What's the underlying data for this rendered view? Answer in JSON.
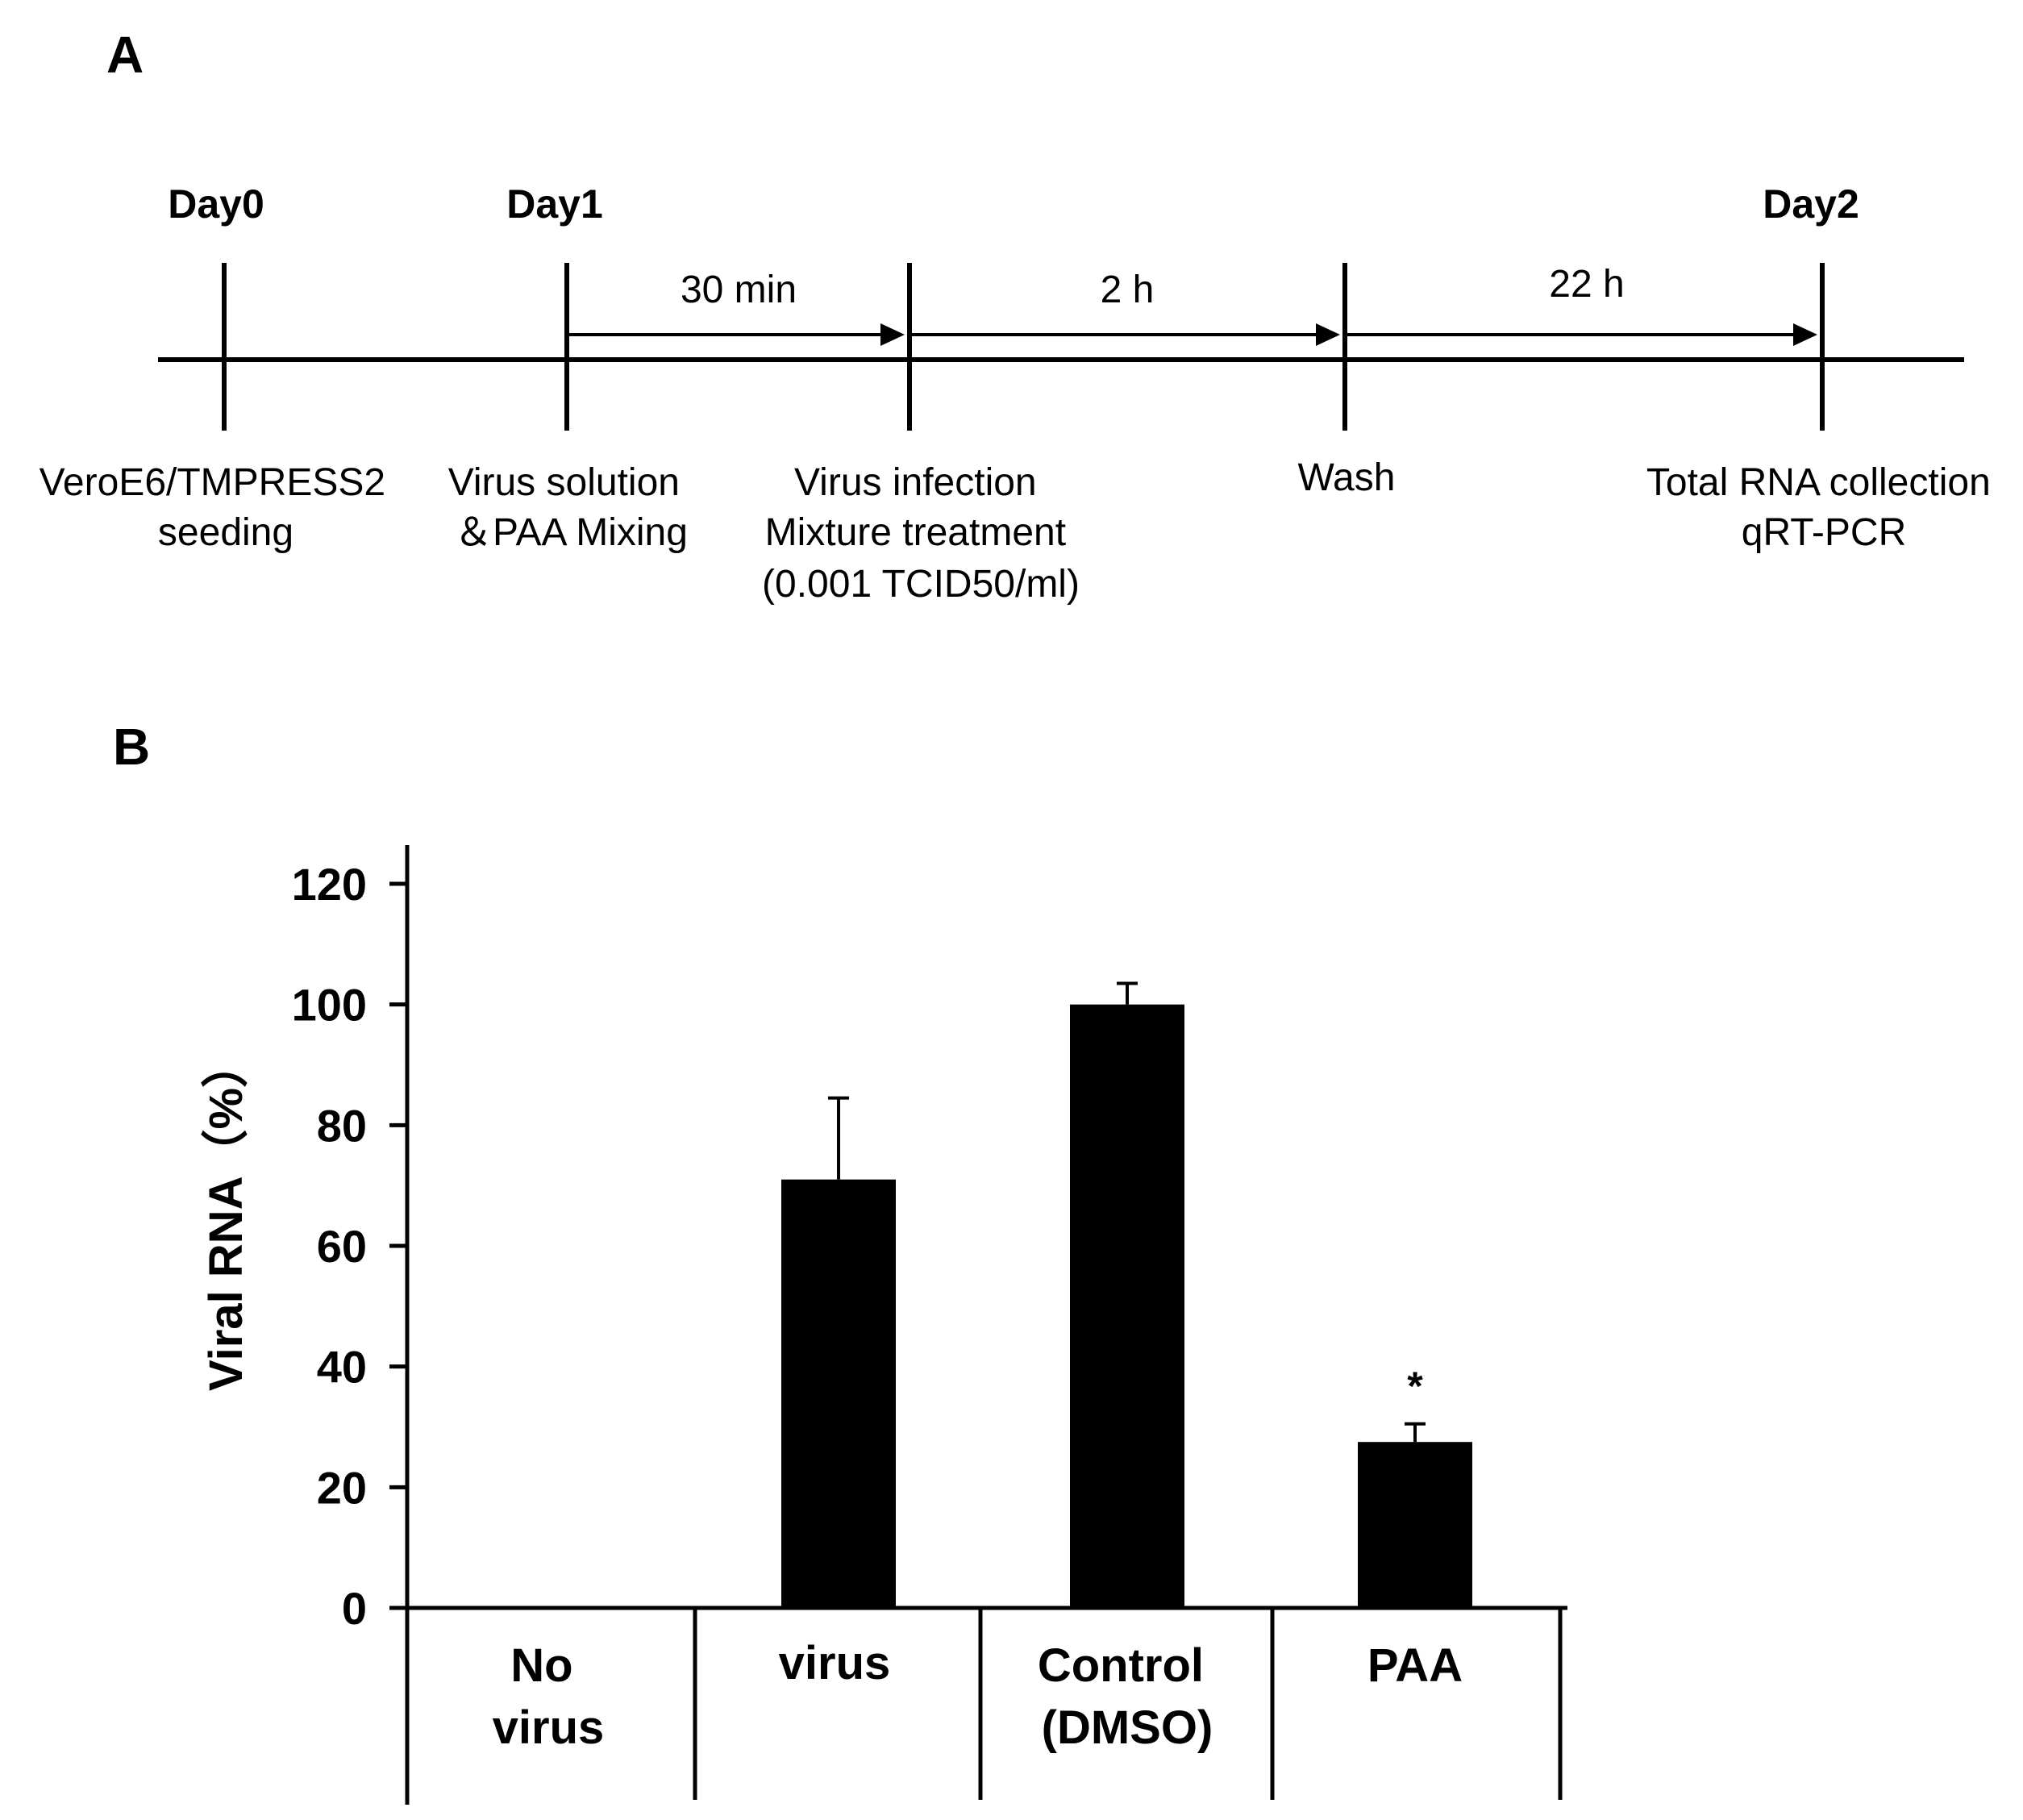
{
  "panels": {
    "a_label": "A",
    "b_label": "B"
  },
  "timeline": {
    "days": [
      {
        "label": "Day0"
      },
      {
        "label": "Day1"
      },
      {
        "label": "Day2"
      }
    ],
    "intervals": [
      {
        "label": "30 min"
      },
      {
        "label": "2 h"
      },
      {
        "label": "22 h"
      }
    ],
    "events": [
      {
        "lines": [
          "VeroE6/TMPRESS2",
          "seeding"
        ]
      },
      {
        "lines": [
          "Virus solution",
          "＆PAA Mixing"
        ]
      },
      {
        "lines": [
          "Virus infection",
          "Mixture treatment",
          "(0.001 TCID50/ml)"
        ]
      },
      {
        "lines": [
          "Wash"
        ]
      },
      {
        "lines": [
          "Total RNA collection",
          "qRT-PCR"
        ]
      }
    ]
  },
  "chart_data": {
    "type": "bar",
    "title": "",
    "xlabel": "",
    "ylabel": "Viral RNA（%）",
    "ylim": [
      0,
      120
    ],
    "yticks": [
      0,
      20,
      40,
      60,
      80,
      100,
      120
    ],
    "categories": [
      {
        "lines": [
          "No",
          "virus"
        ]
      },
      {
        "lines": [
          "virus"
        ]
      },
      {
        "lines": [
          "Control",
          "(DMSO)"
        ]
      },
      {
        "lines": [
          "PAA"
        ]
      }
    ],
    "values": [
      0,
      71,
      100,
      27.5
    ],
    "errors": [
      0,
      13.5,
      3.5,
      3
    ],
    "annotations": [
      "",
      "",
      "",
      "*"
    ],
    "bar_color": "#000000"
  }
}
